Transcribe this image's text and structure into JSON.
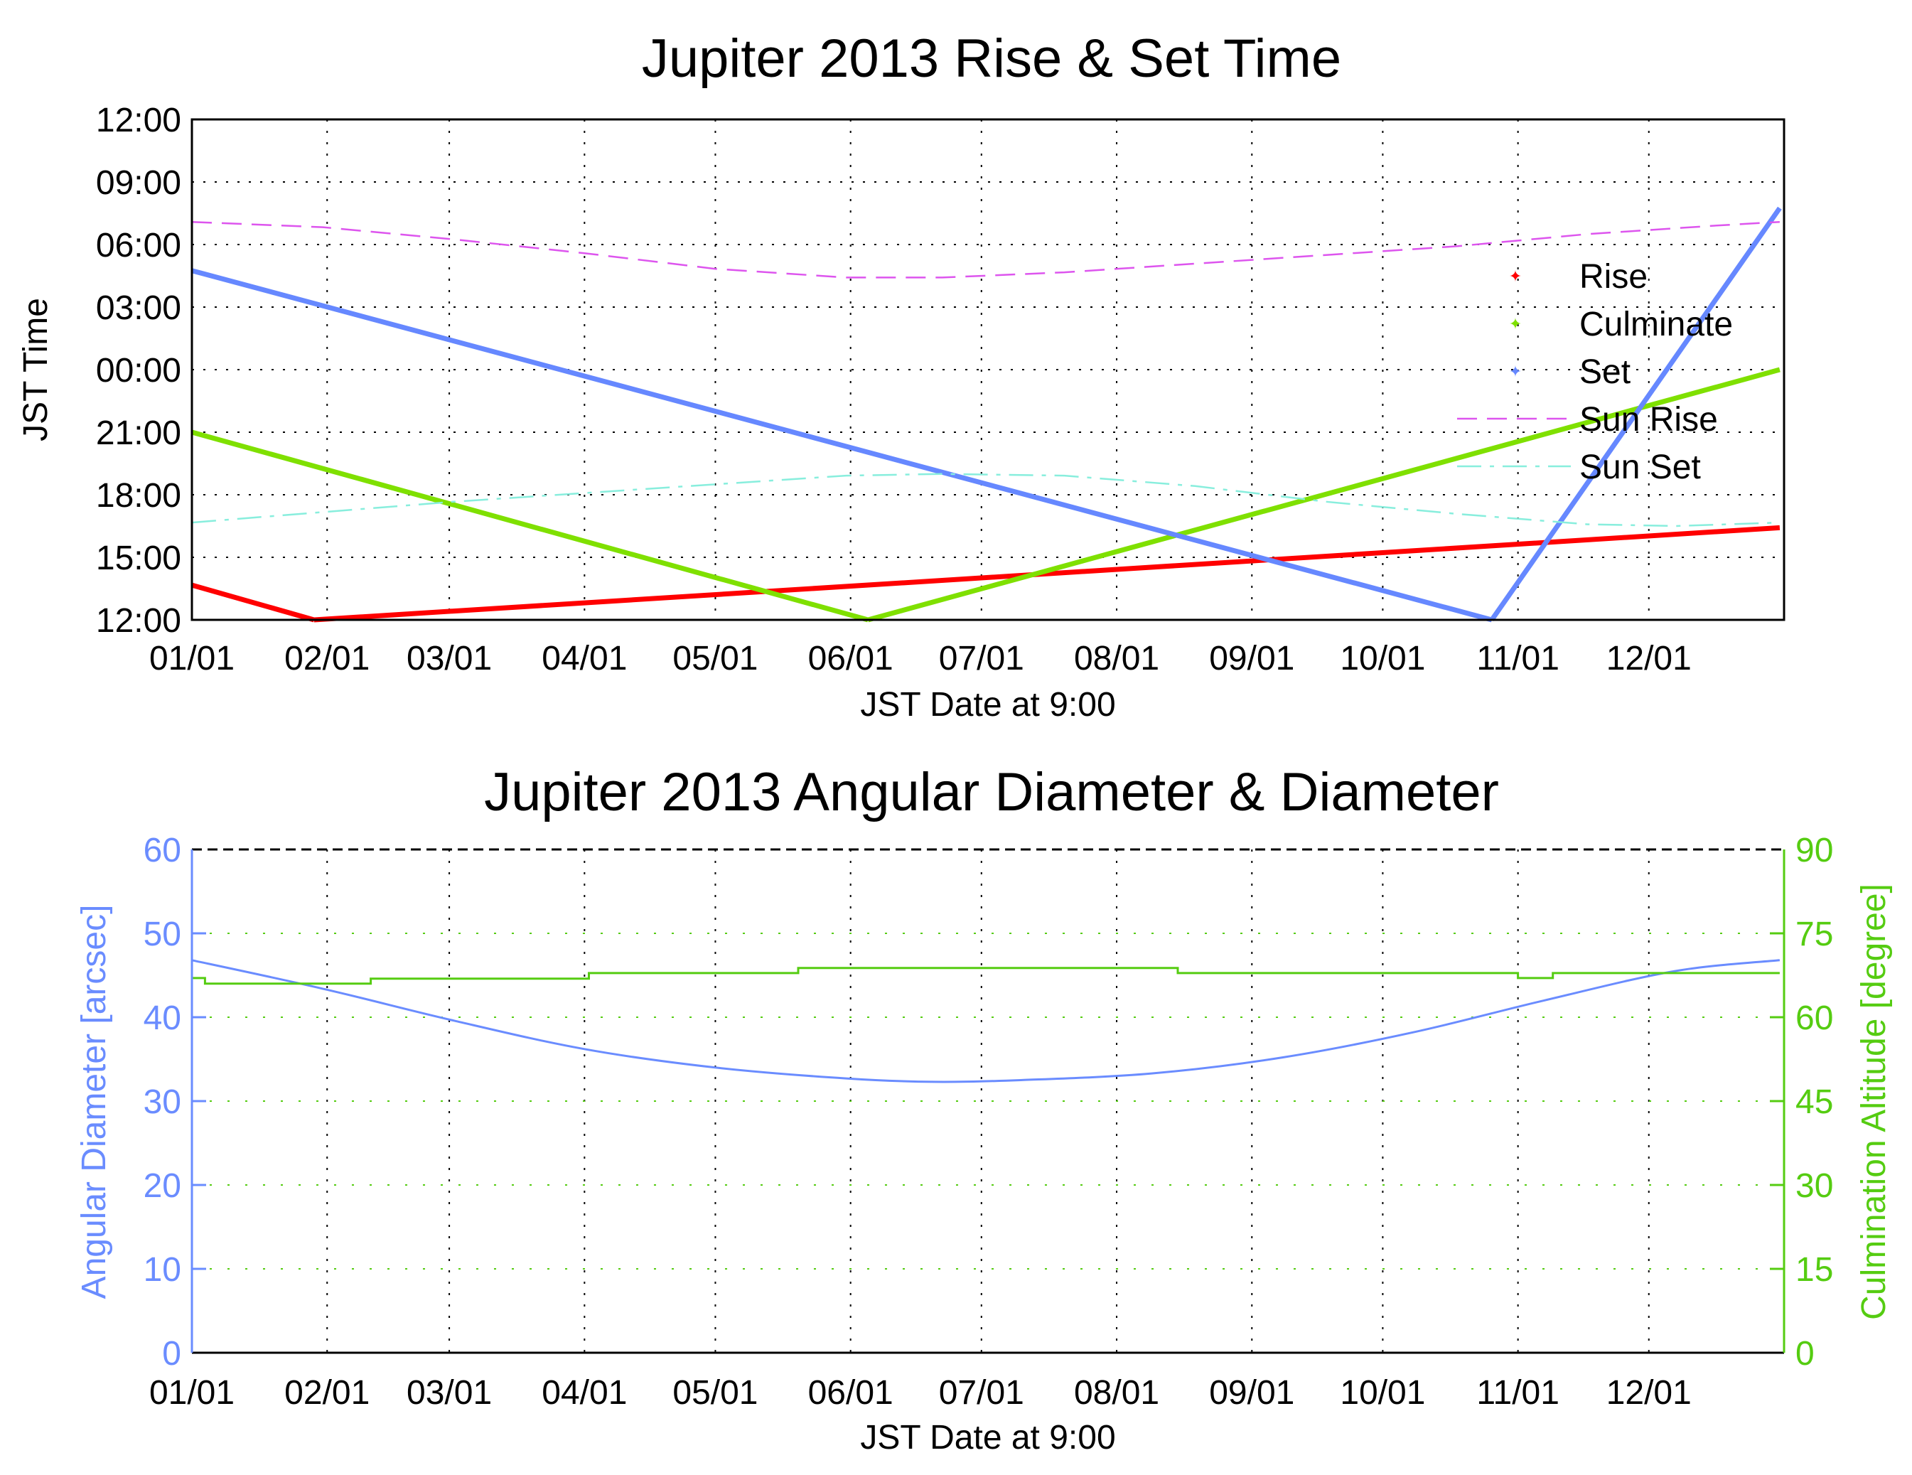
{
  "chart_data": [
    {
      "type": "line",
      "title": "Jupiter 2013 Rise & Set Time",
      "xlabel": "JST Date at 9:00",
      "ylabel": "JST Time",
      "x_unit": "day of year 2013",
      "x_tick_labels": [
        "01/01",
        "02/01",
        "03/01",
        "04/01",
        "05/01",
        "06/01",
        "07/01",
        "08/01",
        "09/01",
        "10/01",
        "11/01",
        "12/01"
      ],
      "y_tick_labels": [
        "12:00",
        "09:00",
        "06:00",
        "03:00",
        "00:00",
        "21:00",
        "18:00",
        "15:00",
        "12:00"
      ],
      "y_axis_note": "time of day plotted from 12:00 (bottom) up to 12:00 next day (top)",
      "grid": true,
      "legend_position": "right",
      "series": [
        {
          "name": "Rise",
          "color": "#ff0000",
          "style": "markers",
          "segments": [
            {
              "x": [
                0,
                28
              ],
              "y": [
                "13:40",
                "12:00"
              ]
            },
            {
              "x": [
                28,
                364
              ],
              "y": [
                "12:00",
                "16:25"
              ]
            }
          ]
        },
        {
          "name": "Culminate",
          "color": "#7fe000",
          "style": "markers",
          "segments": [
            {
              "x": [
                0,
                155
              ],
              "y": [
                "21:00",
                "12:00"
              ]
            },
            {
              "x": [
                155,
                364
              ],
              "y": [
                "12:00",
                "00:00"
              ]
            }
          ]
        },
        {
          "name": "Set",
          "color": "#6688ff",
          "style": "markers",
          "segments": [
            {
              "x": [
                0,
                298
              ],
              "y": [
                "04:45",
                "12:00"
              ]
            },
            {
              "x": [
                298,
                364
              ],
              "y": [
                "12:00",
                "07:45"
              ]
            }
          ]
        },
        {
          "name": "Sun Rise",
          "color": "#dd55ee",
          "style": "dashed",
          "x": [
            0,
            30,
            60,
            90,
            120,
            150,
            172,
            200,
            230,
            260,
            290,
            320,
            350,
            364
          ],
          "y": [
            "07:05",
            "06:50",
            "06:15",
            "05:35",
            "04:50",
            "04:25",
            "04:25",
            "04:40",
            "05:05",
            "05:30",
            "05:55",
            "06:30",
            "06:55",
            "07:05"
          ]
        },
        {
          "name": "Sun Set",
          "color": "#88eedd",
          "style": "dashdot",
          "x": [
            0,
            30,
            60,
            90,
            120,
            150,
            172,
            200,
            230,
            260,
            290,
            320,
            340,
            364
          ],
          "y": [
            "16:40",
            "17:10",
            "17:40",
            "18:05",
            "18:30",
            "18:55",
            "19:00",
            "18:55",
            "18:25",
            "17:40",
            "17:05",
            "16:35",
            "16:30",
            "16:40"
          ]
        }
      ]
    },
    {
      "type": "line",
      "title": "Jupiter 2013 Angular Diameter & Diameter",
      "xlabel": "JST Date at 9:00",
      "ylabel": "Angular Diameter [arcsec]",
      "ylabel_right": "Culmination Altitude [degree]",
      "x_unit": "day of year 2013",
      "x_tick_labels": [
        "01/01",
        "02/01",
        "03/01",
        "04/01",
        "05/01",
        "06/01",
        "07/01",
        "08/01",
        "09/01",
        "10/01",
        "11/01",
        "12/01"
      ],
      "ylim": [
        0,
        60
      ],
      "ylim_right": [
        0,
        90
      ],
      "y_ticks": [
        "0",
        "10",
        "20",
        "30",
        "40",
        "50",
        "60"
      ],
      "y_ticks_right": [
        "0",
        "15",
        "30",
        "45",
        "60",
        "75",
        "90"
      ],
      "grid": true,
      "series": [
        {
          "name": "Angular Diameter",
          "axis": "left",
          "color": "#6a8cff",
          "x": [
            0,
            30,
            60,
            90,
            120,
            150,
            170,
            190,
            220,
            250,
            280,
            310,
            340,
            364
          ],
          "y": [
            46.8,
            43.4,
            39.6,
            36.2,
            34.0,
            32.7,
            32.3,
            32.5,
            33.3,
            35.2,
            38.2,
            42.0,
            45.5,
            46.8
          ]
        },
        {
          "name": "Culmination Altitude",
          "axis": "right",
          "color": "#55cc11",
          "step": true,
          "x": [
            0,
            3,
            3,
            41,
            41,
            91,
            91,
            139,
            139,
            226,
            226,
            304,
            304,
            312,
            312,
            364
          ],
          "y": [
            67,
            67,
            66,
            66,
            66.9,
            66.9,
            67.9,
            67.9,
            68.8,
            68.8,
            67.9,
            67.9,
            67,
            67,
            67.9,
            67.9
          ]
        }
      ]
    }
  ]
}
